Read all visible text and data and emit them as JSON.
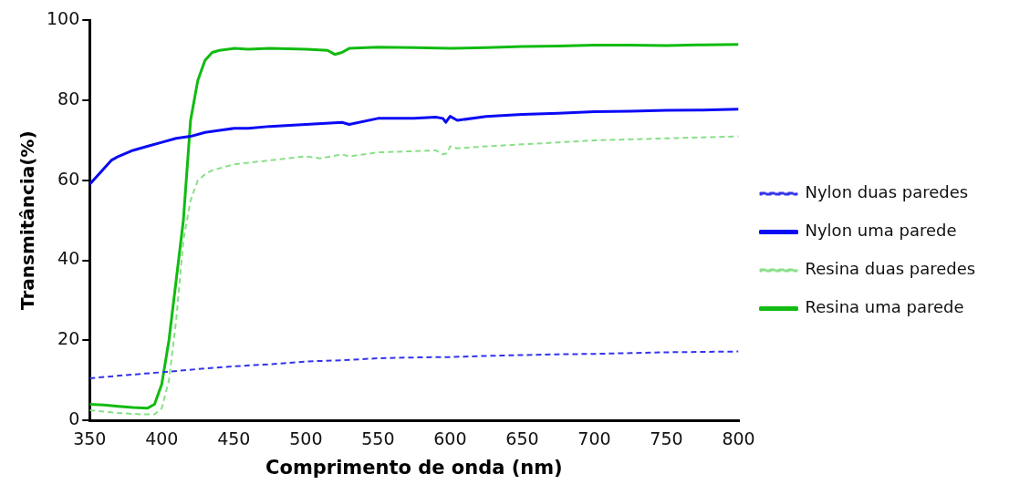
{
  "chart_data": {
    "type": "line",
    "xlabel": "Comprimento de onda (nm)",
    "ylabel": "Transmitância(%)",
    "xlim": [
      350,
      800
    ],
    "xticks": [
      350,
      400,
      450,
      500,
      550,
      600,
      650,
      700,
      750,
      800
    ],
    "ylim": [
      0,
      100
    ],
    "yticks": [
      0,
      20,
      40,
      60,
      80,
      100
    ],
    "grid": false,
    "legend": "right",
    "marker": "none",
    "series": [
      {
        "name": "Nylon duas paredes",
        "color": "#3333ee",
        "line_style": "dashed",
        "x": [
          350,
          375,
          400,
          425,
          450,
          475,
          500,
          525,
          550,
          575,
          590,
          600,
          625,
          650,
          675,
          700,
          725,
          750,
          775,
          800
        ],
        "values": [
          10.5,
          11.3,
          12,
          12.8,
          13.5,
          14,
          14.7,
          15,
          15.5,
          15.7,
          15.8,
          15.8,
          16.1,
          16.3,
          16.5,
          16.6,
          16.8,
          17,
          17.1,
          17.2
        ]
      },
      {
        "name": "Nylon uma parede",
        "color": "#0a0af5",
        "line_style": "solid",
        "x": [
          350,
          355,
          360,
          365,
          370,
          380,
          390,
          400,
          410,
          420,
          430,
          440,
          450,
          460,
          475,
          500,
          525,
          530,
          550,
          575,
          590,
          595,
          597,
          600,
          605,
          625,
          650,
          675,
          700,
          725,
          750,
          775,
          800
        ],
        "values": [
          59,
          61,
          63,
          65,
          66,
          67.5,
          68.5,
          69.5,
          70.5,
          71,
          72,
          72.5,
          73,
          73,
          73.5,
          74,
          74.5,
          74,
          75.5,
          75.5,
          75.8,
          75.5,
          74.5,
          76,
          75,
          76,
          76.5,
          76.8,
          77.2,
          77.3,
          77.5,
          77.6,
          77.8
        ]
      },
      {
        "name": "Resina duas paredes",
        "color": "#88e088",
        "line_style": "dashed",
        "x": [
          350,
          370,
          385,
          395,
          400,
          405,
          410,
          415,
          420,
          425,
          430,
          435,
          450,
          475,
          500,
          510,
          525,
          530,
          550,
          575,
          590,
          595,
          598,
          600,
          605,
          625,
          650,
          675,
          700,
          750,
          800
        ],
        "values": [
          2.5,
          1.8,
          1.5,
          1.5,
          3,
          10,
          25,
          45,
          55,
          60,
          61.5,
          62.5,
          64,
          65,
          66,
          65.5,
          66.5,
          66,
          67,
          67.3,
          67.5,
          66.5,
          66.8,
          68.5,
          68,
          68.5,
          69,
          69.5,
          70,
          70.5,
          71
        ]
      },
      {
        "name": "Resina uma parede",
        "color": "#11bb11",
        "line_style": "solid",
        "x": [
          350,
          360,
          370,
          380,
          390,
          395,
          400,
          405,
          410,
          415,
          420,
          425,
          430,
          435,
          440,
          450,
          460,
          475,
          500,
          515,
          520,
          525,
          530,
          550,
          575,
          600,
          625,
          650,
          675,
          700,
          725,
          750,
          775,
          800
        ],
        "values": [
          4,
          3.8,
          3.5,
          3.2,
          3,
          4,
          9,
          20,
          35,
          50,
          75,
          85,
          90,
          92,
          92.5,
          93,
          92.8,
          93,
          92.8,
          92.5,
          91.5,
          92,
          93,
          93.3,
          93.2,
          93,
          93.2,
          93.5,
          93.6,
          93.8,
          93.8,
          93.7,
          93.9,
          94
        ]
      }
    ]
  }
}
